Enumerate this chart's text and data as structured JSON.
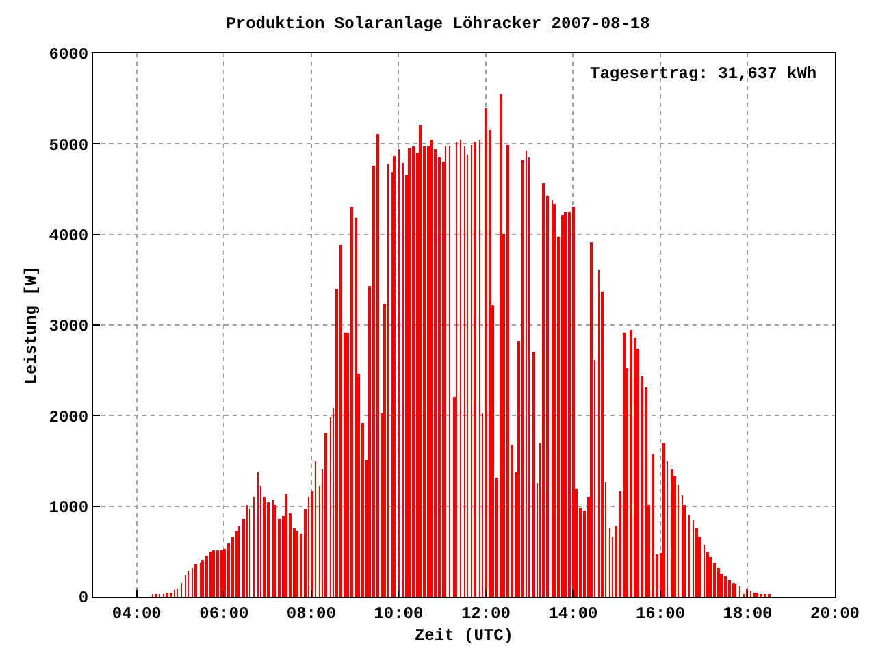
{
  "chart_data": {
    "type": "bar",
    "title": "Produktion Solaranlage Löhracker 2007-08-18",
    "xlabel": "Zeit (UTC)",
    "ylabel": "Leistung [W]",
    "annotations": [
      "Tagesertrag: 31,637 kWh"
    ],
    "x": [
      4.36,
      4.44,
      4.52,
      4.62,
      4.69,
      4.78,
      4.87,
      4.93,
      5.02,
      5.12,
      5.18,
      5.27,
      5.36,
      5.46,
      5.51,
      5.61,
      5.7,
      5.76,
      5.85,
      5.95,
      6.01,
      6.1,
      6.19,
      6.29,
      6.34,
      6.44,
      6.53,
      6.59,
      6.69,
      6.78,
      6.84,
      6.93,
      7.02,
      7.12,
      7.18,
      7.27,
      7.36,
      7.42,
      7.52,
      7.61,
      7.67,
      7.76,
      7.86,
      7.94,
      8.01,
      8.1,
      8.19,
      8.25,
      8.34,
      8.44,
      8.5,
      8.59,
      8.68,
      8.78,
      8.84,
      8.93,
      9.02,
      9.08,
      9.18,
      9.27,
      9.33,
      9.42,
      9.52,
      9.61,
      9.67,
      9.76,
      9.86,
      9.91,
      10.01,
      10.1,
      10.19,
      10.25,
      10.34,
      10.44,
      10.5,
      10.59,
      10.68,
      10.75,
      10.84,
      10.93,
      11.02,
      11.08,
      11.17,
      11.27,
      11.33,
      11.42,
      11.52,
      11.58,
      11.67,
      11.76,
      11.86,
      11.92,
      12.01,
      12.1,
      12.16,
      12.26,
      12.34,
      12.41,
      12.5,
      12.59,
      12.69,
      12.75,
      12.84,
      12.93,
      12.99,
      13.09,
      13.18,
      13.24,
      13.33,
      13.42,
      13.52,
      13.58,
      13.67,
      13.76,
      13.82,
      13.92,
      14.01,
      14.07,
      14.16,
      14.26,
      14.35,
      14.41,
      14.5,
      14.59,
      14.66,
      14.75,
      14.84,
      14.9,
      14.99,
      15.08,
      15.18,
      15.24,
      15.33,
      15.42,
      15.49,
      15.58,
      15.67,
      15.73,
      15.82,
      15.92,
      16.01,
      16.07,
      16.16,
      16.26,
      16.32,
      16.41,
      16.5,
      16.56,
      16.66,
      16.75,
      16.84,
      16.9,
      17.0,
      17.09,
      17.15,
      17.24,
      17.33,
      17.39,
      17.49,
      17.58,
      17.67,
      17.73,
      17.82,
      17.91,
      17.98,
      18.07,
      18.16,
      18.22,
      18.31,
      18.41,
      18.5
    ],
    "values": [
      20,
      20,
      20,
      20,
      40,
      50,
      80,
      90,
      150,
      240,
      290,
      310,
      360,
      380,
      410,
      450,
      500,
      510,
      510,
      510,
      530,
      590,
      660,
      720,
      780,
      860,
      1010,
      960,
      1100,
      1370,
      1230,
      1110,
      1050,
      1080,
      1010,
      860,
      890,
      1130,
      920,
      750,
      720,
      690,
      960,
      1100,
      1160,
      1500,
      1220,
      1410,
      1810,
      1980,
      2080,
      3400,
      3880,
      2910,
      2910,
      4310,
      4180,
      2460,
      1920,
      1510,
      3430,
      4760,
      5110,
      2020,
      3240,
      4780,
      4690,
      4870,
      4940,
      4790,
      4660,
      4960,
      4970,
      4900,
      5210,
      4970,
      4970,
      5050,
      4940,
      4850,
      4810,
      4970,
      4970,
      2200,
      5020,
      5050,
      4970,
      4880,
      4990,
      5020,
      5050,
      2020,
      5390,
      5150,
      3220,
      1320,
      5540,
      4010,
      4990,
      1680,
      1380,
      2830,
      4820,
      4930,
      4850,
      2700,
      1260,
      1690,
      4570,
      4430,
      4390,
      4340,
      3980,
      4210,
      4250,
      4240,
      4300,
      1200,
      980,
      950,
      1110,
      3920,
      2610,
      3610,
      3370,
      1270,
      750,
      660,
      780,
      1170,
      2910,
      2530,
      2940,
      2850,
      2730,
      2440,
      2310,
      1020,
      1570,
      470,
      480,
      1690,
      1500,
      1410,
      1330,
      1240,
      1120,
      1010,
      900,
      840,
      750,
      660,
      570,
      500,
      440,
      380,
      320,
      260,
      230,
      180,
      150,
      140,
      120,
      20,
      90,
      60,
      50,
      50,
      30,
      20,
      20
    ],
    "color": "#ff0000",
    "xlim": [
      3,
      20
    ],
    "xticks": [
      {
        "value": 4,
        "label": "04:00"
      },
      {
        "value": 6,
        "label": "06:00"
      },
      {
        "value": 8,
        "label": "08:00"
      },
      {
        "value": 10,
        "label": "10:00"
      },
      {
        "value": 12,
        "label": "12:00"
      },
      {
        "value": 14,
        "label": "14:00"
      },
      {
        "value": 16,
        "label": "16:00"
      },
      {
        "value": 18,
        "label": "18:00"
      },
      {
        "value": 20,
        "label": "20:00"
      }
    ],
    "ylim": [
      0,
      6000
    ],
    "yticks": [
      0,
      1000,
      2000,
      3000,
      4000,
      5000,
      6000
    ],
    "grid": true
  }
}
